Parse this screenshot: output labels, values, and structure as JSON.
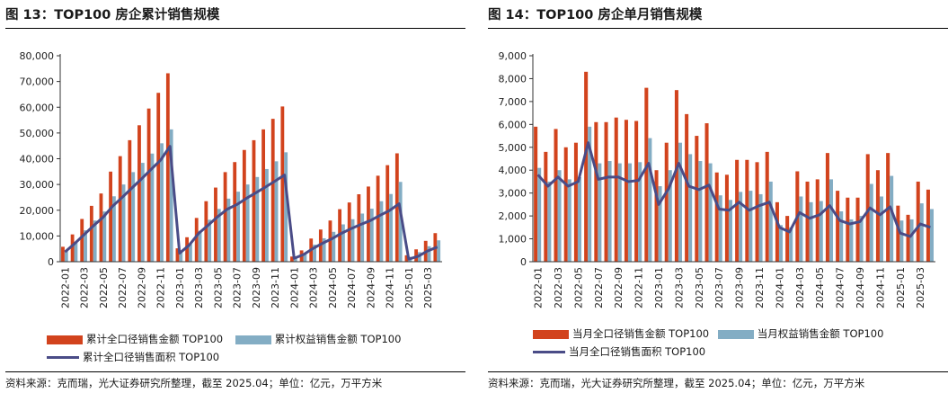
{
  "colors": {
    "red": "#D2431D",
    "blue": "#83ADC4",
    "line": "#4A4C87"
  },
  "source_text": "资料来源：克而瑞，光大证券研究所整理，截至 2025.04；单位：亿元，万平方米",
  "chart_data": [
    {
      "type": "bar+line",
      "title": "图 13：TOP100 房企累计销售规模",
      "ylim": [
        0,
        80000
      ],
      "yticks": [
        "0",
        "10,000",
        "20,000",
        "30,000",
        "40,000",
        "50,000",
        "60,000",
        "70,000",
        "80,000"
      ],
      "categories": [
        "2022-01",
        "2022-02",
        "2022-03",
        "2022-04",
        "2022-05",
        "2022-06",
        "2022-07",
        "2022-08",
        "2022-09",
        "2022-10",
        "2022-11",
        "2022-12",
        "2023-01",
        "2023-02",
        "2023-03",
        "2023-04",
        "2023-05",
        "2023-06",
        "2023-07",
        "2023-08",
        "2023-09",
        "2023-10",
        "2023-11",
        "2023-12",
        "2024-01",
        "2024-02",
        "2024-03",
        "2024-04",
        "2024-05",
        "2024-06",
        "2024-07",
        "2024-08",
        "2024-09",
        "2024-10",
        "2024-11",
        "2024-12",
        "2025-01",
        "2025-02",
        "2025-03",
        "2025-04"
      ],
      "xtick_labels": [
        "2022-01",
        "2022-03",
        "2022-05",
        "2022-07",
        "2022-09",
        "2022-11",
        "2023-01",
        "2023-03",
        "2023-05",
        "2023-07",
        "2023-09",
        "2023-11",
        "2024-01",
        "2024-03",
        "2024-05",
        "2024-07",
        "2024-09",
        "2024-11",
        "2025-01",
        "2025-03"
      ],
      "series": [
        {
          "name": "累计全口径销售金额 TOP100",
          "kind": "bar",
          "color": "red",
          "values": [
            5800,
            10600,
            16600,
            21700,
            26500,
            35000,
            41000,
            47200,
            53000,
            59500,
            65600,
            73200,
            5200,
            9500,
            17000,
            23500,
            28800,
            34800,
            38700,
            43400,
            47200,
            51400,
            55500,
            60300,
            2000,
            4400,
            9000,
            12500,
            16000,
            20400,
            23000,
            26200,
            29200,
            33400,
            37500,
            42100,
            2500,
            4800,
            8100,
            11100
          ]
        },
        {
          "name": "累计权益销售金额 TOP100",
          "kind": "bar",
          "color": "blue",
          "values": [
            4300,
            7800,
            12200,
            16000,
            19500,
            25400,
            30000,
            34800,
            38400,
            42000,
            46000,
            51400,
            3600,
            6800,
            12000,
            16300,
            20500,
            24500,
            27200,
            30000,
            32900,
            36000,
            39000,
            42500,
            1500,
            3000,
            6600,
            9100,
            11600,
            14500,
            16500,
            18700,
            20600,
            23500,
            26300,
            31000,
            1900,
            3700,
            6000,
            8300
          ]
        },
        {
          "name": "累计全口径销售面积 TOP100",
          "kind": "line",
          "color": "line",
          "values": [
            3800,
            7000,
            10500,
            14000,
            17300,
            21600,
            25000,
            28600,
            32100,
            35800,
            39400,
            44800,
            3300,
            6400,
            11000,
            14200,
            17500,
            20400,
            22200,
            24600,
            26800,
            29000,
            31300,
            33700,
            1300,
            2800,
            5200,
            7200,
            9000,
            11100,
            12900,
            14500,
            16000,
            18000,
            19900,
            22500,
            1000,
            2100,
            4200,
            5700
          ]
        }
      ]
    },
    {
      "type": "bar+line",
      "title": "图 14：TOP100 房企单月销售规模",
      "ylim": [
        0,
        9000
      ],
      "yticks": [
        "0",
        "1,000",
        "2,000",
        "3,000",
        "4,000",
        "5,000",
        "6,000",
        "7,000",
        "8,000",
        "9,000"
      ],
      "categories": [
        "2022-01",
        "2022-02",
        "2022-03",
        "2022-04",
        "2022-05",
        "2022-06",
        "2022-07",
        "2022-08",
        "2022-09",
        "2022-10",
        "2022-11",
        "2022-12",
        "2023-01",
        "2023-02",
        "2023-03",
        "2023-04",
        "2023-05",
        "2023-06",
        "2023-07",
        "2023-08",
        "2023-09",
        "2023-10",
        "2023-11",
        "2023-12",
        "2024-01",
        "2024-02",
        "2024-03",
        "2024-04",
        "2024-05",
        "2024-06",
        "2024-07",
        "2024-08",
        "2024-09",
        "2024-10",
        "2024-11",
        "2024-12",
        "2025-01",
        "2025-02",
        "2025-03",
        "2025-04"
      ],
      "xtick_labels": [
        "2022-01",
        "2022-03",
        "2022-05",
        "2022-07",
        "2022-09",
        "2022-11",
        "2023-01",
        "2023-03",
        "2023-05",
        "2023-07",
        "2023-09",
        "2023-11",
        "2024-01",
        "2024-03",
        "2024-05",
        "2024-07",
        "2024-09",
        "2024-11",
        "2025-01",
        "2025-03"
      ],
      "series": [
        {
          "name": "当月全口径销售金额 TOP100",
          "kind": "bar",
          "color": "red",
          "values": [
            5900,
            4800,
            5800,
            5000,
            5200,
            8300,
            6100,
            6100,
            6300,
            6200,
            6150,
            7600,
            4000,
            5200,
            7500,
            6450,
            5500,
            6050,
            3900,
            3800,
            4450,
            4450,
            4350,
            4800,
            2600,
            2000,
            3950,
            3500,
            3600,
            4750,
            3100,
            2800,
            2800,
            4700,
            4000,
            4750,
            2450,
            2050,
            3500,
            3150
          ]
        },
        {
          "name": "当月权益销售金额 TOP100",
          "kind": "bar",
          "color": "blue",
          "values": [
            4100,
            3500,
            4000,
            3600,
            3700,
            5900,
            4300,
            4400,
            4300,
            4300,
            4350,
            5400,
            3300,
            4000,
            5200,
            4700,
            4400,
            4300,
            2900,
            2700,
            3050,
            3100,
            2950,
            3500,
            1600,
            1500,
            2850,
            2600,
            2650,
            3600,
            2200,
            1850,
            2000,
            3400,
            2850,
            3750,
            1800,
            1850,
            2550,
            2300
          ]
        },
        {
          "name": "当月全口径销售面积 TOP100",
          "kind": "line",
          "color": "line",
          "values": [
            3800,
            3300,
            3700,
            3300,
            3500,
            5200,
            3600,
            3700,
            3700,
            3500,
            3550,
            4300,
            2500,
            3200,
            4300,
            3300,
            3150,
            3350,
            2300,
            2250,
            2600,
            2250,
            2450,
            2600,
            1500,
            1300,
            2150,
            1900,
            2050,
            2450,
            1800,
            1650,
            1750,
            2350,
            2050,
            2400,
            1250,
            1100,
            1650,
            1500
          ]
        }
      ]
    }
  ]
}
